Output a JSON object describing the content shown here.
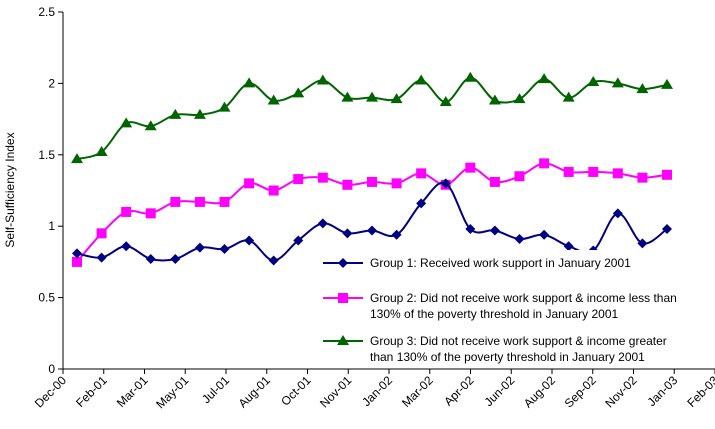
{
  "chart_data": {
    "type": "line",
    "title": "",
    "xlabel": "",
    "ylabel": "Self-Sufficiency Index",
    "ylim": [
      0,
      2.5
    ],
    "yticks": [
      "0",
      "0.5",
      "1",
      "1.5",
      "2",
      "2.5"
    ],
    "xticks": [
      "Dec-00",
      "Feb-01",
      "Mar-01",
      "May-01",
      "Jul-01",
      "Aug-01",
      "Oct-01",
      "Nov-01",
      "Jan-02",
      "Mar-02",
      "Apr-02",
      "Jun-02",
      "Aug-02",
      "Sep-02",
      "Nov-02",
      "Jan-03",
      "Feb-03"
    ],
    "grid": false,
    "legend_position": "bottom-right inside plot",
    "x": [
      "Jan-01",
      "Feb-01",
      "Mar-01",
      "Apr-01",
      "May-01",
      "Jun-01",
      "Jul-01",
      "Aug-01",
      "Sep-01",
      "Oct-01",
      "Nov-01",
      "Dec-01",
      "Jan-02",
      "Feb-02",
      "Mar-02",
      "Apr-02",
      "May-02",
      "Jun-02",
      "Jul-02",
      "Aug-02",
      "Sep-02",
      "Oct-02",
      "Nov-02",
      "Dec-02",
      "Jan-03"
    ],
    "series": [
      {
        "name": "Group 1: Received work support in January 2001",
        "color": "#000080",
        "marker": "diamond",
        "values": [
          0.81,
          0.78,
          0.86,
          0.77,
          0.77,
          0.85,
          0.84,
          0.9,
          0.76,
          0.9,
          1.02,
          0.95,
          0.97,
          0.94,
          1.16,
          1.3,
          0.98,
          0.97,
          0.91,
          0.94,
          0.86,
          0.83,
          1.09,
          0.88,
          0.98
        ]
      },
      {
        "name": "Group 2: Did not receive work support & income less than 130% of the poverty threshold in January 2001",
        "legend_lines": [
          "Group 2: Did not receive work support & income less than",
          "130% of the poverty threshold in January 2001"
        ],
        "color": "#ff00ff",
        "marker": "square",
        "values": [
          0.75,
          0.95,
          1.1,
          1.09,
          1.17,
          1.17,
          1.17,
          1.3,
          1.25,
          1.33,
          1.34,
          1.29,
          1.31,
          1.3,
          1.37,
          1.29,
          1.41,
          1.31,
          1.35,
          1.44,
          1.38,
          1.38,
          1.37,
          1.34,
          1.36
        ]
      },
      {
        "name": "Group 3: Did not receive work support & income greater than 130% of the poverty threshold in January 2001",
        "legend_lines": [
          "Group 3: Did not receive work support & income greater",
          "than 130% of the poverty threshold in January 2001"
        ],
        "color": "#006400",
        "marker": "triangle",
        "values": [
          1.47,
          1.52,
          1.72,
          1.7,
          1.78,
          1.78,
          1.83,
          2.0,
          1.88,
          1.93,
          2.02,
          1.9,
          1.9,
          1.89,
          2.02,
          1.87,
          2.04,
          1.88,
          1.89,
          2.03,
          1.9,
          2.01,
          2.0,
          1.96,
          1.99
        ]
      }
    ]
  }
}
